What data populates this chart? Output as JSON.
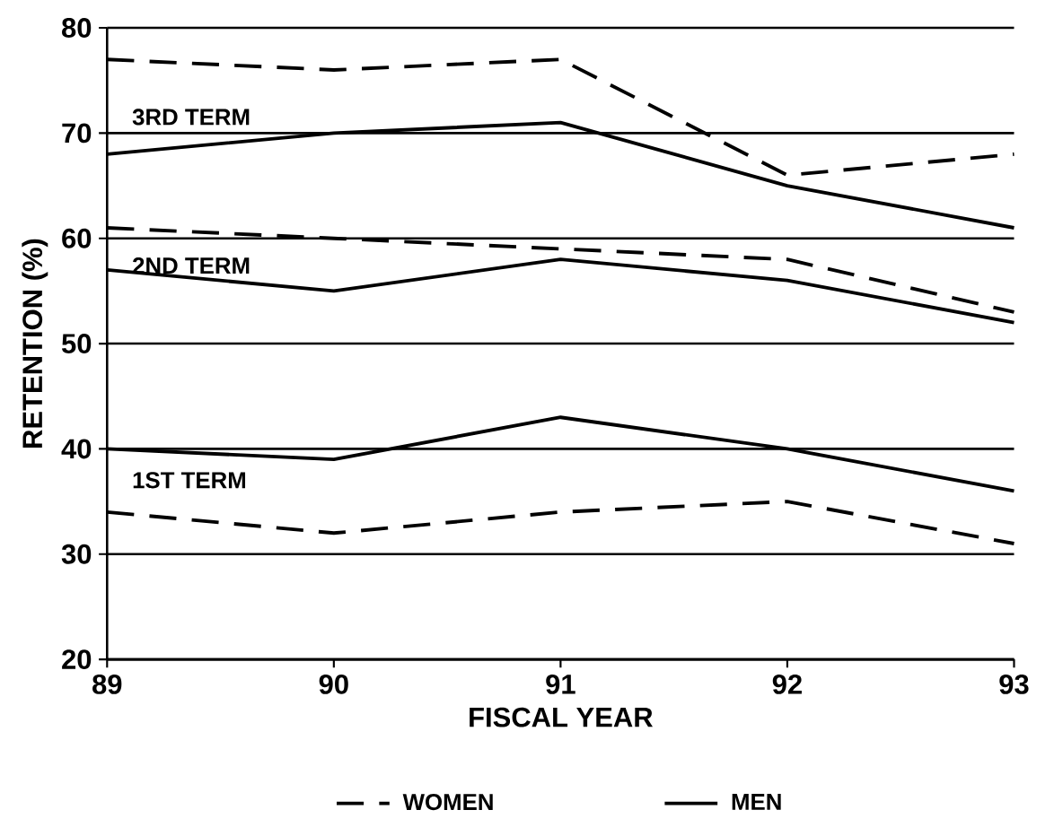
{
  "chart_data": {
    "type": "line",
    "xlabel": "FISCAL YEAR",
    "ylabel": "RETENTION (%)",
    "x": [
      89,
      90,
      91,
      92,
      93
    ],
    "xlim": [
      89,
      93
    ],
    "xticks": [
      89,
      90,
      91,
      92,
      93
    ],
    "ylim": [
      20,
      80
    ],
    "yticks": [
      20,
      30,
      40,
      50,
      60,
      70,
      80
    ],
    "grid": "y",
    "legend": "bottom",
    "marker": "none",
    "series": [
      {
        "name": "WOMEN",
        "color": "#000000",
        "line_style": "dashed",
        "values": [
          77,
          76,
          77,
          66,
          68
        ]
      },
      {
        "name": "MEN",
        "color": "#000000",
        "line_style": "solid",
        "values": [
          68,
          70,
          71,
          65,
          61
        ]
      },
      {
        "color": "#000000",
        "line_style": "dashed",
        "values": [
          61,
          60,
          59,
          58,
          53
        ]
      },
      {
        "color": "#000000",
        "line_style": "solid",
        "values": [
          57,
          55,
          58,
          56,
          52
        ]
      },
      {
        "color": "#000000",
        "line_style": "solid",
        "values": [
          40,
          39,
          43,
          40,
          36
        ]
      },
      {
        "color": "#000000",
        "line_style": "dashed",
        "values": [
          34,
          32,
          34,
          35,
          31
        ]
      }
    ],
    "annotations": [
      "3RD TERM",
      "2ND TERM",
      "1ST TERM"
    ]
  }
}
